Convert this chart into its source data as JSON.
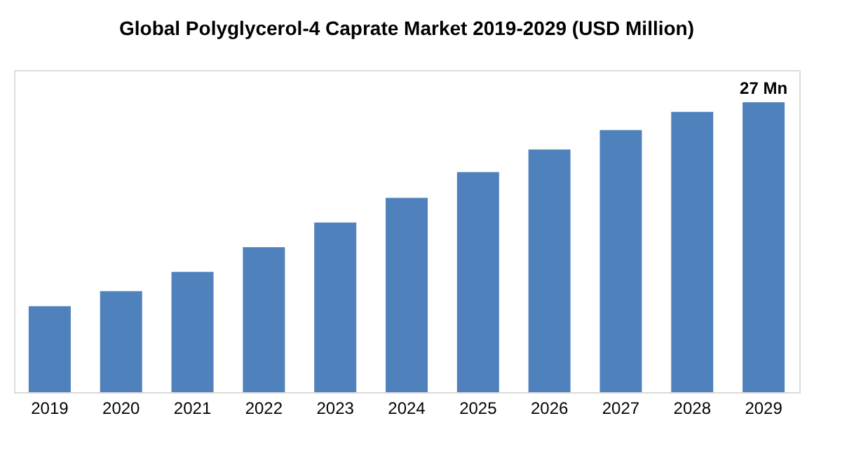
{
  "chart_data": {
    "type": "bar",
    "title": "Global Polyglycerol-4 Caprate Market 2019-2029 (USD Million)",
    "categories": [
      "2019",
      "2020",
      "2021",
      "2022",
      "2023",
      "2024",
      "2025",
      "2026",
      "2027",
      "2028",
      "2029"
    ],
    "values": [
      8.0,
      9.4,
      11.2,
      13.5,
      15.8,
      18.1,
      20.5,
      22.6,
      24.4,
      26.1,
      27
    ],
    "value_labels": [
      null,
      null,
      null,
      null,
      null,
      null,
      null,
      null,
      null,
      null,
      "27 Mn"
    ],
    "color": "#4f81bd",
    "ylim": [
      0,
      30
    ],
    "grid": false
  }
}
